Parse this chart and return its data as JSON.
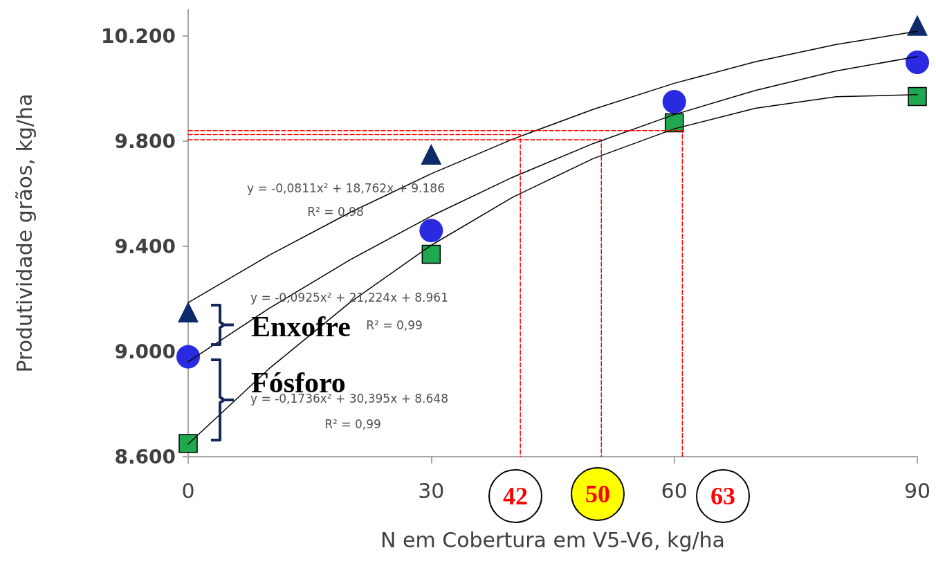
{
  "chart_data": {
    "type": "scatter",
    "xlabel": "N em Cobertura em V5-V6, kg/ha",
    "ylabel": "Produtividade grãos, kg/ha",
    "xlim": [
      0,
      90
    ],
    "xticks": [
      0,
      30,
      60,
      90
    ],
    "ylim": [
      8600,
      10300
    ],
    "yticks": [
      {
        "value": 8600,
        "label": "8.600"
      },
      {
        "value": 9000,
        "label": "9.000"
      },
      {
        "value": 9400,
        "label": "9.400"
      },
      {
        "value": 9800,
        "label": "9.800"
      },
      {
        "value": 10200,
        "label": "10.200"
      }
    ],
    "grid": false,
    "series": [
      {
        "type": "line",
        "color": "#000000",
        "marker": "none",
        "line_style": "solid",
        "x": [
          0,
          10,
          20,
          30,
          40,
          50,
          60,
          70,
          80,
          90
        ],
        "values": [
          9186,
          9366,
          9529,
          9676,
          9807,
          9921,
          10020,
          10102,
          10168,
          10218
        ]
      },
      {
        "type": "line",
        "color": "#000000",
        "marker": "none",
        "line_style": "solid",
        "x": [
          0,
          10,
          20,
          30,
          40,
          50,
          60,
          70,
          80,
          90
        ],
        "values": [
          8961,
          9164,
          9349,
          9515,
          9662,
          9791,
          9901,
          9993,
          10067,
          10122
        ]
      },
      {
        "type": "line",
        "color": "#000000",
        "marker": "none",
        "line_style": "solid",
        "x": [
          0,
          10,
          20,
          30,
          40,
          50,
          60,
          70,
          80,
          90
        ],
        "values": [
          8648,
          8935,
          9187,
          9404,
          9586,
          9734,
          9847,
          9925,
          9969,
          9977
        ]
      },
      {
        "type": "line",
        "color": "#ff0000",
        "marker": "none",
        "line_style": "dashed",
        "x": [
          0,
          41,
          41
        ],
        "values": [
          9825,
          9825,
          8600
        ]
      },
      {
        "type": "line",
        "color": "#ff0000",
        "marker": "none",
        "line_style": "dashed",
        "x": [
          0,
          51,
          51
        ],
        "values": [
          9805,
          9805,
          8600
        ]
      },
      {
        "type": "line",
        "color": "#ff0000",
        "marker": "none",
        "line_style": "dashed",
        "x": [
          0,
          61,
          61
        ],
        "values": [
          9840,
          9840,
          8600
        ]
      },
      {
        "color": "#0d2b6b",
        "marker": "triangle",
        "x": [
          0,
          30,
          60,
          90
        ],
        "values": [
          9150,
          9750,
          null,
          10240
        ]
      },
      {
        "color": "#2a2ae0",
        "marker": "circle",
        "x": [
          0,
          30,
          60,
          90
        ],
        "values": [
          8980,
          9460,
          9950,
          10100
        ]
      },
      {
        "color": "#1fa84f",
        "marker": "square",
        "x": [
          0,
          30,
          60,
          90
        ],
        "values": [
          8650,
          9370,
          9870,
          9970
        ]
      }
    ],
    "annotations": [
      "y = -0,0811x² + 18,762x + 9.186",
      "R² = 0,98",
      "y = -0,0925x² + 21,224x + 8.961",
      "R² = 0,99",
      "y = -0,1736x² + 30,395x + 8.648",
      "R² = 0,99",
      "Enxofre",
      "Fósforo",
      "42",
      "50",
      "63"
    ]
  }
}
